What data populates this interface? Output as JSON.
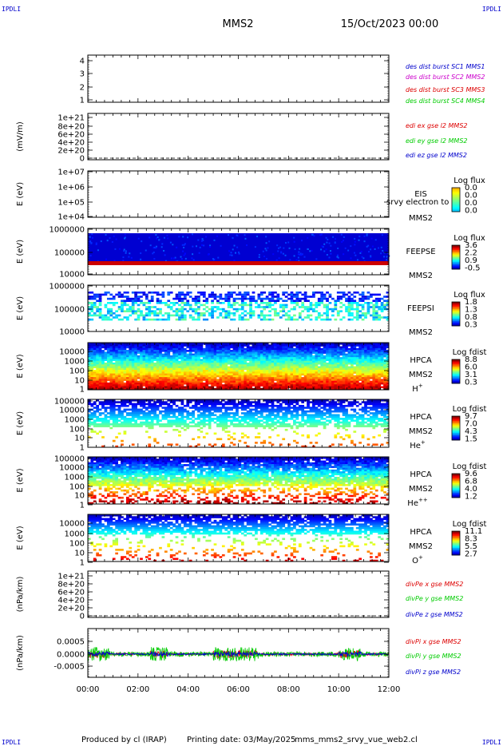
{
  "header": {
    "corner_tl": "IPDLI",
    "corner_tr": "IPDLI",
    "corner_bl": "IPDLI",
    "corner_br": "IPDLI",
    "spacecraft": "MMS2",
    "date": "15/Oct/2023 00:00"
  },
  "footer": {
    "produced_by": "Produced by cl (IRAP)",
    "printing_date": "Printing date: 03/May/2025",
    "script": "mms_mms2_srvy_vue_web2.cl"
  },
  "colors": {
    "blue": "#0000cc",
    "magenta": "#cc00cc",
    "red": "#dd0000",
    "green": "#00cc00"
  },
  "chart_data": [
    {
      "id": "burst",
      "type": "line",
      "ylabel": "",
      "ylim": [
        0.5,
        4.5
      ],
      "yticks": [
        "1",
        "2",
        "3",
        "4"
      ],
      "legend": [
        {
          "text": "des dist burst SC1 MMS1",
          "color": "#0000cc"
        },
        {
          "text": "des dist burst SC2 MMS2",
          "color": "#cc00cc"
        },
        {
          "text": "des dist burst SC3 MMS3",
          "color": "#dd0000"
        },
        {
          "text": "des dist burst SC4 MMS4",
          "color": "#00cc00"
        }
      ]
    },
    {
      "id": "edi",
      "type": "line",
      "ylabel": "(mV/m)",
      "yticks": [
        "1e+21",
        "8e+20",
        "6e+20",
        "4e+20",
        "2e+20",
        "0"
      ],
      "legend": [
        {
          "text": "edi ex gse l2 MMS2",
          "color": "#dd0000"
        },
        {
          "text": "edi ey gse l2 MMS2",
          "color": "#00cc00"
        },
        {
          "text": "edi ez gse l2 MMS2",
          "color": "#0000cc"
        }
      ]
    },
    {
      "id": "eis",
      "type": "heatmap",
      "ylabel": "E (eV)",
      "yticks": [
        "1e+07",
        "1e+06",
        "1e+05",
        "1e+04"
      ],
      "labels": [
        "EIS",
        "MMS2"
      ],
      "overlay_text": "srvy electron to",
      "cbar_title": "Log flux",
      "cbar_ticks": [
        "0.0",
        "0.0",
        "0.0",
        "0.0"
      ]
    },
    {
      "id": "feepse",
      "type": "heatmap",
      "ylabel": "E (eV)",
      "yticks": [
        "1000000",
        "100000",
        "10000"
      ],
      "labels": [
        "FEEPSE",
        "MMS2"
      ],
      "cbar_title": "Log flux",
      "cbar_ticks": [
        "3.6",
        "2.2",
        "0.9",
        "-0.5"
      ]
    },
    {
      "id": "feepsi",
      "type": "heatmap",
      "ylabel": "E (eV)",
      "yticks": [
        "1000000",
        "100000",
        "10000"
      ],
      "labels": [
        "FEEPSI",
        "MMS2"
      ],
      "cbar_title": "Log flux",
      "cbar_ticks": [
        "1.8",
        "1.3",
        "0.8",
        "0.3"
      ]
    },
    {
      "id": "hpca_h",
      "type": "heatmap",
      "ylabel": "E (eV)",
      "yticks": [
        "10000",
        "1000",
        "100",
        "10",
        "1"
      ],
      "labels": [
        "HPCA",
        "MMS2"
      ],
      "species": {
        "base": "H",
        "sup": "+"
      },
      "cbar_title": "Log fdist",
      "cbar_ticks": [
        "8.8",
        "6.0",
        "3.1",
        "0.3"
      ]
    },
    {
      "id": "hpca_he",
      "type": "heatmap",
      "ylabel": "E (eV)",
      "yticks": [
        "100000",
        "10000",
        "1000",
        "100",
        "10",
        "1"
      ],
      "labels": [
        "HPCA",
        "MMS2"
      ],
      "species": {
        "base": "He",
        "sup": "+"
      },
      "cbar_title": "Log fdist",
      "cbar_ticks": [
        "9.7",
        "7.0",
        "4.3",
        "1.5"
      ]
    },
    {
      "id": "hpca_hepp",
      "type": "heatmap",
      "ylabel": "E (eV)",
      "yticks": [
        "100000",
        "10000",
        "1000",
        "100",
        "10",
        "1"
      ],
      "labels": [
        "HPCA",
        "MMS2"
      ],
      "species": {
        "base": "He",
        "sup": "++"
      },
      "cbar_title": "Log fdist",
      "cbar_ticks": [
        "9.6",
        "6.8",
        "4.0",
        "1.2"
      ]
    },
    {
      "id": "hpca_o",
      "type": "heatmap",
      "ylabel": "E (eV)",
      "yticks": [
        "10000",
        "1000",
        "100",
        "10",
        "1"
      ],
      "labels": [
        "HPCA",
        "MMS2"
      ],
      "species": {
        "base": "O",
        "sup": "+"
      },
      "cbar_title": "Log fdist",
      "cbar_ticks": [
        "11.1",
        "8.3",
        "5.5",
        "2.7"
      ]
    },
    {
      "id": "divpe",
      "type": "line",
      "ylabel": "(nPa/km)",
      "yticks": [
        "1e+21",
        "8e+20",
        "6e+20",
        "4e+20",
        "2e+20",
        "0"
      ],
      "legend": [
        {
          "text": "divPe x gse MMS2",
          "color": "#dd0000"
        },
        {
          "text": "divPe y gse MMS2",
          "color": "#00cc00"
        },
        {
          "text": "divPe z gse MMS2",
          "color": "#0000cc"
        }
      ]
    },
    {
      "id": "divpi",
      "type": "line",
      "ylabel": "(nPa/km)",
      "yticks": [
        "0.0005",
        "0.0000",
        "-0.0005"
      ],
      "ylim": [
        -0.0008,
        0.0008
      ],
      "legend": [
        {
          "text": "divPi x gse MMS2",
          "color": "#dd0000"
        },
        {
          "text": "divPi y gse MMS2",
          "color": "#00cc00"
        },
        {
          "text": "divPi z gse MMS2",
          "color": "#0000cc"
        }
      ]
    }
  ],
  "xaxis": {
    "ticks": [
      "00:00",
      "02:00",
      "04:00",
      "06:00",
      "08:00",
      "10:00",
      "12:00"
    ],
    "range_hours": [
      0,
      12
    ]
  }
}
